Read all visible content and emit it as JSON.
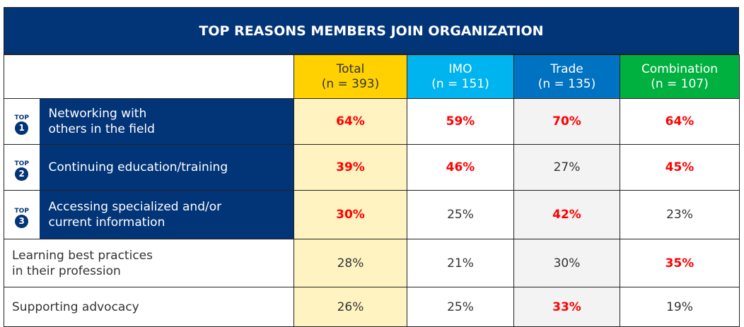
{
  "title": "TOP REASONS MEMBERS JOIN ORGANIZATION",
  "columns": [
    {
      "label": "Total",
      "n": "(n = 393)",
      "color": "#FFD100",
      "text_color": "#333333"
    },
    {
      "label": "IMO",
      "n": "(n = 151)",
      "color": "#00B5EF",
      "text_color": "#FFFFFF"
    },
    {
      "label": "Trade",
      "n": "(n = 135)",
      "color": "#0072C2",
      "text_color": "#FFFFFF"
    },
    {
      "label": "Combination",
      "n": "(n = 107)",
      "color": "#00B140",
      "text_color": "#FFFFFF"
    }
  ],
  "badge_label": "TOP",
  "rows": [
    {
      "rank": "1",
      "label": [
        "Networking with",
        "others in the field"
      ],
      "values": [
        "64%",
        "59%",
        "70%",
        "64%"
      ],
      "highlight": [
        true,
        true,
        true,
        true
      ]
    },
    {
      "rank": "2",
      "label": [
        "Continuing education/training"
      ],
      "values": [
        "39%",
        "46%",
        "27%",
        "45%"
      ],
      "highlight": [
        true,
        true,
        false,
        true
      ]
    },
    {
      "rank": "3",
      "label": [
        "Accessing specialized and/or",
        "current information"
      ],
      "values": [
        "30%",
        "25%",
        "42%",
        "23%"
      ],
      "highlight": [
        true,
        false,
        true,
        false
      ]
    },
    {
      "label": [
        "Learning best practices",
        "in their profession"
      ],
      "values": [
        "28%",
        "21%",
        "30%",
        "35%"
      ],
      "highlight": [
        false,
        false,
        false,
        true
      ]
    },
    {
      "label": [
        "Supporting advocacy"
      ],
      "values": [
        "26%",
        "25%",
        "33%",
        "19%"
      ],
      "highlight": [
        false,
        false,
        true,
        false
      ]
    }
  ],
  "colors": {
    "navy": "#023478",
    "highlight": "#FF0000",
    "total_bg": "#FFF3C2",
    "trade_bg": "#F3F3F3"
  }
}
